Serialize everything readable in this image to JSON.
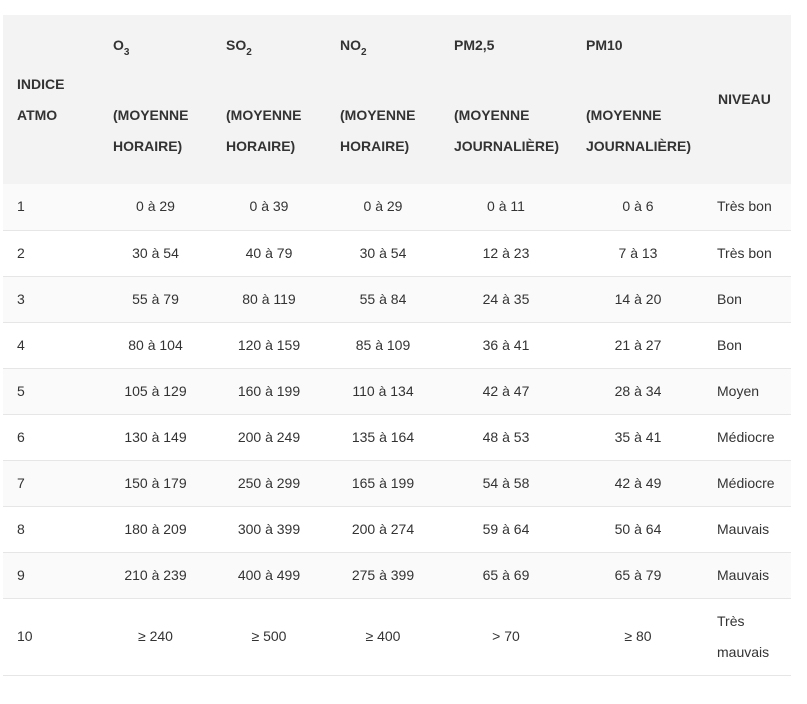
{
  "header": {
    "indice": [
      "INDICE",
      "ATMO"
    ],
    "o3": {
      "base": "O",
      "sub": "3",
      "line1": "(MOYENNE",
      "line2": "HORAIRE)"
    },
    "so2": {
      "base": "SO",
      "sub": "2",
      "line1": "(MOYENNE",
      "line2": "HORAIRE)"
    },
    "no2": {
      "base": "NO",
      "sub": "2",
      "line1": "(MOYENNE",
      "line2": "HORAIRE)"
    },
    "pm25": {
      "base": "PM2,5",
      "line1": "(MOYENNE",
      "line2": "JOURNALIÈRE)"
    },
    "pm10": {
      "base": "PM10",
      "line1": "(MOYENNE",
      "line2": "JOURNALIÈRE)"
    },
    "niveau": "NIVEAU"
  },
  "rows": [
    {
      "indice": "1",
      "o3": "0 à  29",
      "so2": "0 à  39",
      "no2": "0 à  29",
      "pm25": "0 à 11",
      "pm10": "0 à 6",
      "niveau": "Très bon"
    },
    {
      "indice": "2",
      "o3": "30 à  54",
      "so2": "40 à  79",
      "no2": "30 à 54",
      "pm25": "12 à 23",
      "pm10": "7 à 13",
      "niveau": "Très bon"
    },
    {
      "indice": "3",
      "o3": "55 à  79",
      "so2": "80 à 119",
      "no2": "55 à 84",
      "pm25": "24 à 35",
      "pm10": "14 à 20",
      "niveau": "Bon"
    },
    {
      "indice": "4",
      "o3": "80 à 104",
      "so2": "120 à 159",
      "no2": "85 à 109",
      "pm25": "36 à 41",
      "pm10": "21 à 27",
      "niveau": "Bon"
    },
    {
      "indice": "5",
      "o3": "105 à 129",
      "so2": "160 à 199",
      "no2": "110 à 134",
      "pm25": "42 à 47",
      "pm10": "28 à 34",
      "niveau": "Moyen"
    },
    {
      "indice": "6",
      "o3": "130 à 149",
      "so2": "200 à 249",
      "no2": "135 à 164",
      "pm25": "48 à 53",
      "pm10": "35 à 41",
      "niveau": "Médiocre"
    },
    {
      "indice": "7",
      "o3": "150 à 179",
      "so2": "250 à 299",
      "no2": "165 à 199",
      "pm25": "54 à 58",
      "pm10": "42 à 49",
      "niveau": "Médiocre"
    },
    {
      "indice": "8",
      "o3": "180 à 209",
      "so2": "300 à 399",
      "no2": "200 à 274",
      "pm25": "59 à 64",
      "pm10": "50 à 64",
      "niveau": "Mauvais"
    },
    {
      "indice": "9",
      "o3": "210 à 239",
      "so2": "400 à 499",
      "no2": "275 à 399",
      "pm25": "65 à 69",
      "pm10": "65 à 79",
      "niveau": "Mauvais"
    },
    {
      "indice": "10",
      "o3": "≥ 240",
      "so2": "≥ 500",
      "no2": "≥ 400",
      "pm25": "> 70",
      "pm10": "≥ 80",
      "niveau_lines": [
        "Très",
        "mauvais"
      ]
    }
  ],
  "colors": {
    "header_bg": "#f3f3f3",
    "row_alt_bg": "#fafafa",
    "border": "#e6e6e6",
    "text": "#333333"
  }
}
